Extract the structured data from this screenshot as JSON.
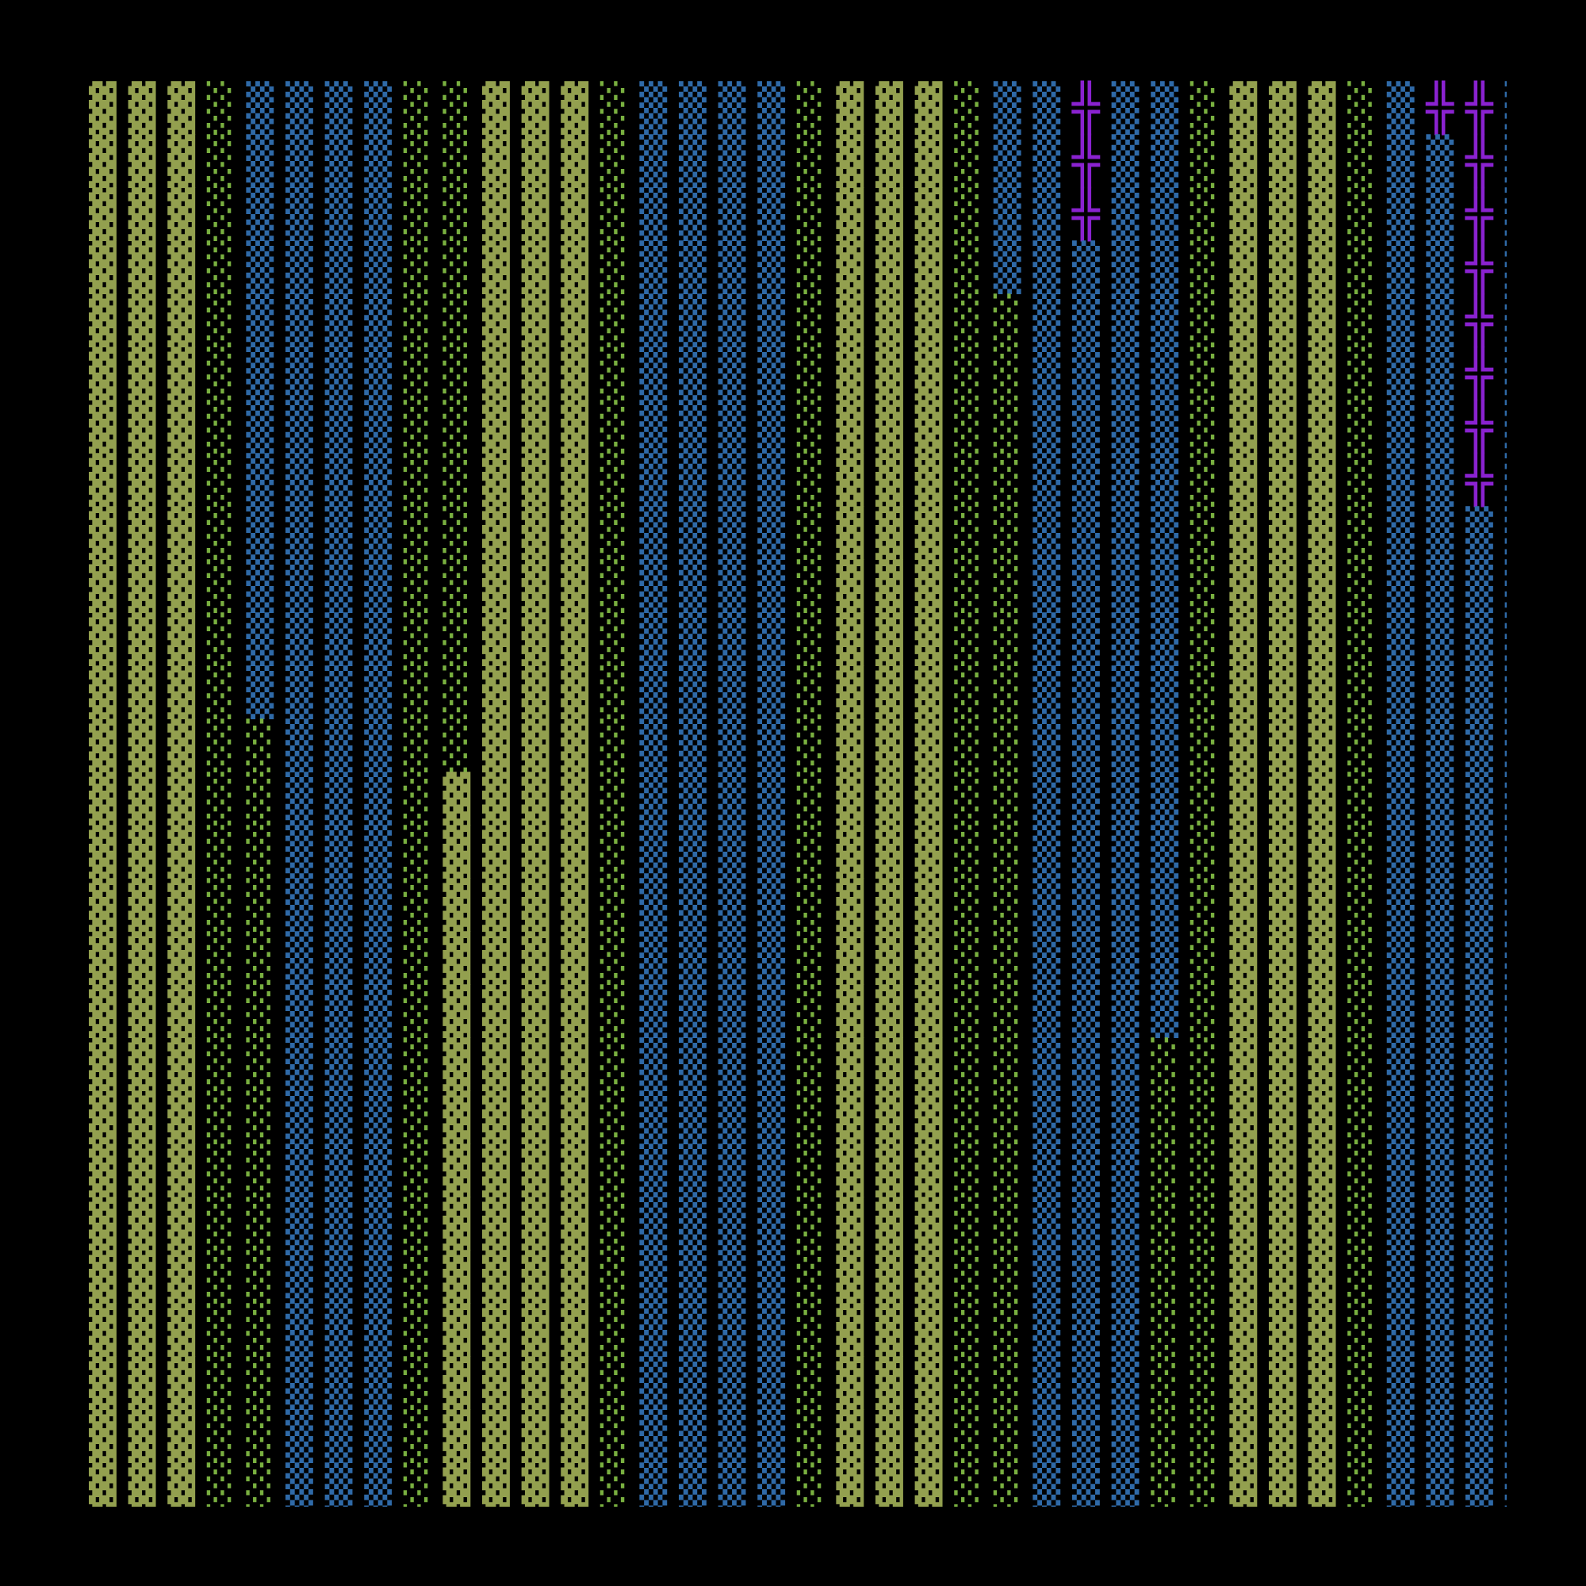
{
  "map": {
    "rows": [
      "▓▓▓░▒▒▒▒░░▓▓▓░▒▒▒▒░▓▓▓░▒▒╬▒▒░▓▓▓░▒╬╬▒",
      "▓▓▓░▒▒▒▒░░▓▓▓░▒▒▒▒░▓▓▓░▒▒╬▒▒░▓▓▓░▒▒╬▒",
      "▓▓▓░▒▒▒▒░░▓▓▓░▒▒▒▒░▓▓▓░▒▒╬▒▒░▓▓▓░▒▒╬▒",
      "▓▓▓░▒▒▒▒░░▓▓▓░▒▒▒▒░▓▓▓░▒▒▒▒▒░▓▓▓░▒▒╬▒",
      "▓▓▓░▒▒▒▒░░▓▓▓░▒▒▒▒░▓▓▓░░▒▒▒▒░▓▓▓░▒▒╬▒",
      "▓▓▓░▒▒▒▒░░▓▓▓░▒▒▒▒░▓▓▓░░▒▒▒▒░▓▓▓░▒▒╬▒",
      "▓▓▓░▒▒▒▒░░▓▓▓░▒▒▒▒░▓▓▓░░▒▒▒▒░▓▓▓░▒▒╬▒",
      "▓▓▓░▒▒▒▒░░▓▓▓░▒▒▒▒░▓▓▓░░▒▒▒▒░▓▓▓░▒▒╬▒",
      "▓▓▓░▒▒▒▒░░▓▓▓░▒▒▒▒░▓▓▓░░▒▒▒▒░▓▓▓░▒▒▒▒",
      "▓▓▓░▒▒▒▒░░▓▓▓░▒▒▒▒░▓▓▓░░▒▒▒▒░▓▓▓░▒▒▒▒",
      "▓▓▓░▒▒▒▒░░▓▓▓░▒▒▒▒░▓▓▓░░▒▒▒▒░▓▓▓░▒▒▒▒",
      "▓▓▓░▒▒▒▒░░▓▓▓░▒▒▒▒░▓▓▓░░▒▒▒▒░▓▓▓░▒▒▒▒",
      "▓▓▓░░▒▒▒░░▓▓▓░▒▒▒▒░▓▓▓░░▒▒▒▒░▓▓▓░▒▒▒▒",
      "▓▓▓░░▒▒▒░▓▓▓▓░▒▒▒▒░▓▓▓░░▒▒▒▒░▓▓▓░▒▒▒▒",
      "▓▓▓░░▒▒▒░▓▓▓▓░▒▒▒▒░▓▓▓░░▒▒▒▒░▓▓▓░▒▒▒▒",
      "▓▓▓░░▒▒▒░▓▓▓▓░▒▒▒▒░▓▓▓░░▒▒▒▒░▓▓▓░▒▒▒▒",
      "▓▓▓░░▒▒▒░▓▓▓▓░▒▒▒▒░▓▓▓░░▒▒▒▒░▓▓▓░▒▒▒▒",
      "▓▓▓░░▒▒▒░▓▓▓▓░▒▒▒▒░▓▓▓░░▒▒▒▒░▓▓▓░▒▒▒▒",
      "▓▓▓░░▒▒▒░▓▓▓▓░▒▒▒▒░▓▓▓░░▒▒▒░░▓▓▓░▒▒▒▒",
      "▓▓▓░░▒▒▒░▓▓▓▓░▒▒▒▒░▓▓▓░░▒▒▒░░▓▓▓░▒▒▒▒",
      "▓▓▓░░▒▒▒░▓▓▓▓░▒▒▒▒░▓▓▓░░▒▒▒░░▓▓▓░▒▒▒▒",
      "▓▓▓░░▒▒▒░▓▓▓▓░▒▒▒▒░▓▓▓░░▒▒▒░░▓▓▓░▒▒▒▒",
      "▓▓▓░░▒▒▒░▓▓▓▓░▒▒▒▒░▓▓▓░░▒▒▒░░▓▓▓░▒▒▒▒",
      "▓▓▓░░▒▒▒░▓▓▓▓░▒▒▒▒░▓▓▓░░▒▒▒░░▓▓▓░▒▒▒▒",
      "▓▓▓░░▒▒▒░▓▓▓▓░▒▒▒▒░▓▓▓░░▒▒▒░░▓▓▓░▒▒▒▒",
      "▓▓▓░░▒▒▒░▓▓▓▓░▒▒▒▒░▓▓▓░░▒▒▒░░▓▓▓░▒▒▒▒",
      "▓▓▓░░▒▒▒░▓▓▓▓░▒▒▒▒░▓▓▓░░▒▒▒░░▓▓▓░▒▒▒▒"
    ]
  }
}
